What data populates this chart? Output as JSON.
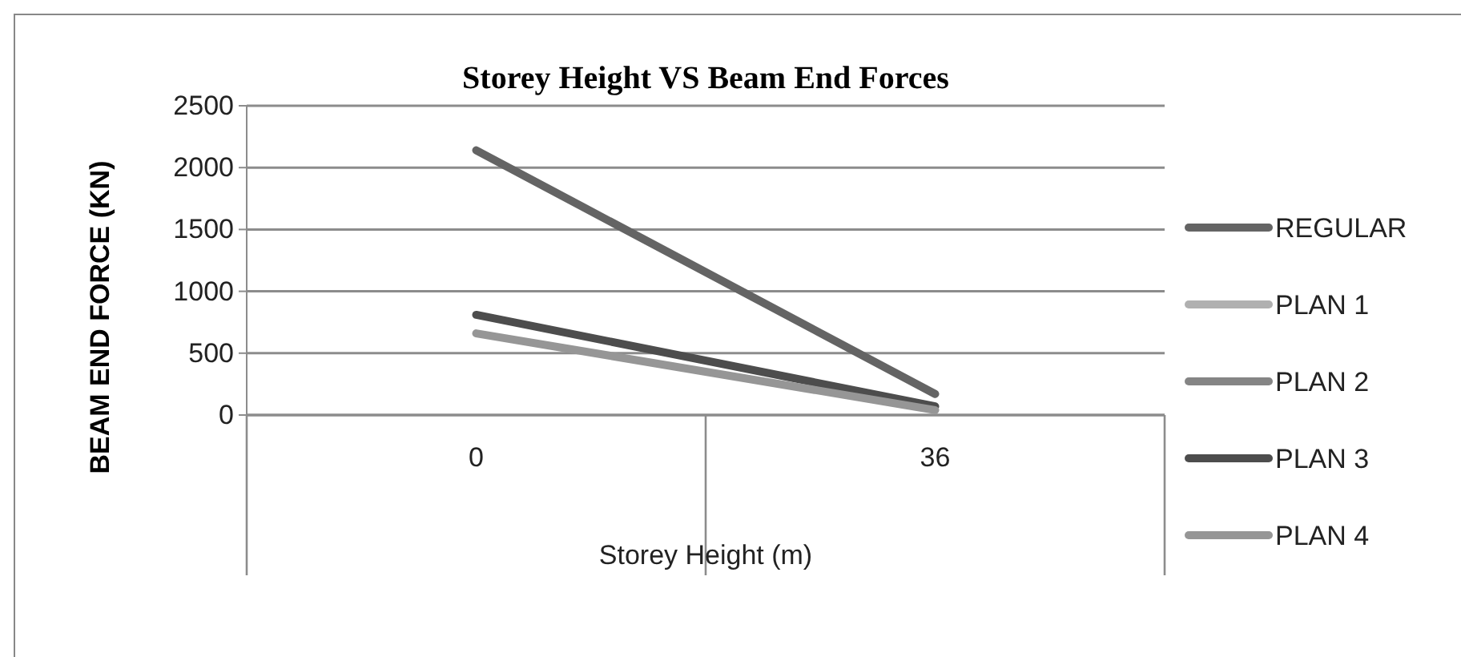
{
  "chart_data": {
    "type": "line",
    "title": "Storey Height VS Beam End Forces",
    "xlabel": "Storey Height (m)",
    "ylabel": "BEAM END FORCE (KN)",
    "categories": [
      "0",
      "36"
    ],
    "series": [
      {
        "name": "REGULAR",
        "color": "#646464",
        "values": [
          2140,
          170
        ]
      },
      {
        "name": "PLAN 1",
        "color": "#b0b0b0",
        "values": [
          null,
          null
        ]
      },
      {
        "name": "PLAN 2",
        "color": "#858585",
        "values": [
          null,
          null
        ]
      },
      {
        "name": "PLAN 3",
        "color": "#4d4d4d",
        "values": [
          810,
          70
        ]
      },
      {
        "name": "PLAN 4",
        "color": "#969696",
        "values": [
          660,
          40
        ]
      }
    ],
    "ylim": [
      0,
      2500
    ],
    "yticks": [
      0,
      500,
      1000,
      1500,
      2000,
      2500
    ],
    "grid": "y",
    "legend": "right",
    "marker": "none",
    "line_style": "solid"
  }
}
